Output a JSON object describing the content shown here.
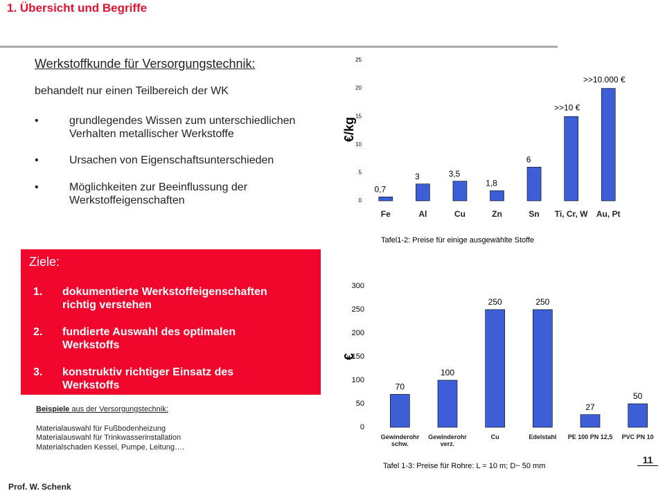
{
  "header": {
    "title": "1. Übersicht und Begriffe"
  },
  "content": {
    "heading": "Werkstoffkunde für Versorgungstechnik:",
    "intro": "behandelt nur einen Teilbereich der WK",
    "bullets": [
      "grundlegendes Wissen zum unterschiedlichen Verhalten metallischer Werkstoffe",
      "Ursachen von Eigenschaftsunterschieden",
      "Möglichkeiten zur Beeinflussung der Werkstoffeigenschaften"
    ]
  },
  "goals": {
    "title": "Ziele:",
    "items": [
      {
        "number": "1.",
        "text": "dokumentierte Werkstoffeigenschaften richtig verstehen"
      },
      {
        "number": "2.",
        "text": "fundierte Auswahl des optimalen Werkstoffs"
      },
      {
        "number": "3.",
        "text": "konstruktiv richtiger Einsatz des Werkstoffs"
      }
    ]
  },
  "examples": {
    "title_bold": "Beispiele",
    "title_rest": "aus der Versorgungstechnik:",
    "lines": [
      "Materialauswahl für Fußbodenheizung",
      "Materialauswahl für Trinkwasserinstallation",
      "Materialschaden Kessel, Pumpe, Leitung…."
    ]
  },
  "footer": {
    "author": "Prof. W. Schenk",
    "page": "11"
  },
  "chart_data": [
    {
      "type": "bar",
      "y_label": "€/kg",
      "caption": "Tafel1-2: Preise für einige ausgewählte Stoffe",
      "categories": [
        "Fe",
        "Al",
        "Cu",
        "Zn",
        "Sn",
        "Ti, Cr, W",
        "Au, Pt"
      ],
      "values": [
        0.7,
        3,
        3.5,
        1.8,
        6,
        15,
        20
      ],
      "value_labels": [
        "0,7",
        "3",
        "3,5",
        "1,8",
        "6",
        null,
        null
      ],
      "annotations": [
        ">>10 €",
        ">>10.000 €"
      ],
      "color": "#3d5ed6",
      "ylim": [
        0,
        25
      ],
      "yticks": [
        0,
        5,
        10,
        15,
        20,
        25
      ],
      "grid": false
    },
    {
      "type": "bar",
      "y_label": "€",
      "caption": "Tafel 1-3: Preise für Rohre: L = 10 m; D~ 50 mm",
      "categories": [
        "Gewinderohr schw.",
        "Gewinderohr verz.",
        "Cu",
        "Edelstahl",
        "PE 100 PN 12,5",
        "PVC PN 10"
      ],
      "values": [
        70,
        100,
        250,
        250,
        27,
        50
      ],
      "color": "#3d5ed6",
      "ylim": [
        0,
        300
      ],
      "yticks": [
        0,
        50,
        100,
        150,
        200,
        250,
        300
      ],
      "grid": false
    }
  ]
}
